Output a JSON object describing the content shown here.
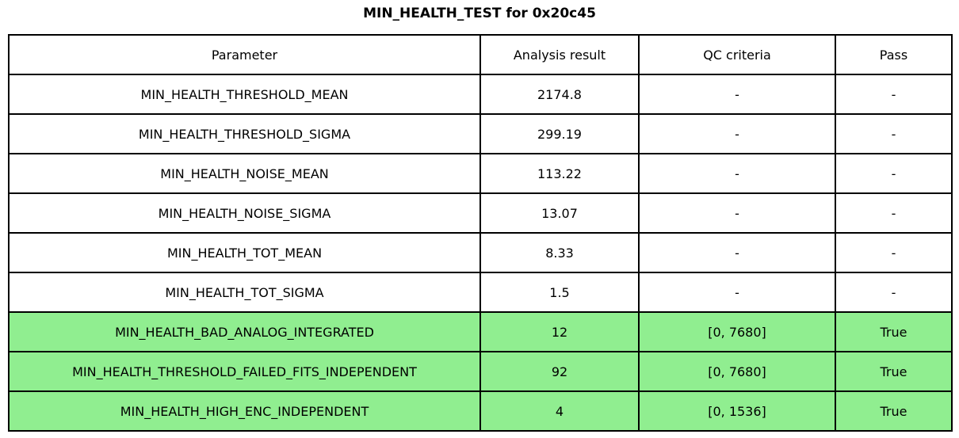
{
  "title": "MIN_HEALTH_TEST for 0x20c45",
  "colors": {
    "pass_row_green": "#90EE90",
    "border": "#000000",
    "background": "#ffffff"
  },
  "chart_data": {
    "type": "table",
    "title": "MIN_HEALTH_TEST for 0x20c45",
    "columns": [
      "Parameter",
      "Analysis result",
      "QC criteria",
      "Pass"
    ],
    "rows": [
      {
        "cells": [
          "MIN_HEALTH_THRESHOLD_MEAN",
          "2174.8",
          "-",
          "-"
        ],
        "highlight": false
      },
      {
        "cells": [
          "MIN_HEALTH_THRESHOLD_SIGMA",
          "299.19",
          "-",
          "-"
        ],
        "highlight": false
      },
      {
        "cells": [
          "MIN_HEALTH_NOISE_MEAN",
          "113.22",
          "-",
          "-"
        ],
        "highlight": false
      },
      {
        "cells": [
          "MIN_HEALTH_NOISE_SIGMA",
          "13.07",
          "-",
          "-"
        ],
        "highlight": false
      },
      {
        "cells": [
          "MIN_HEALTH_TOT_MEAN",
          "8.33",
          "-",
          "-"
        ],
        "highlight": false
      },
      {
        "cells": [
          "MIN_HEALTH_TOT_SIGMA",
          "1.5",
          "-",
          "-"
        ],
        "highlight": false
      },
      {
        "cells": [
          "MIN_HEALTH_BAD_ANALOG_INTEGRATED",
          "12",
          "[0, 7680]",
          "True"
        ],
        "highlight": true
      },
      {
        "cells": [
          "MIN_HEALTH_THRESHOLD_FAILED_FITS_INDEPENDENT",
          "92",
          "[0, 7680]",
          "True"
        ],
        "highlight": true
      },
      {
        "cells": [
          "MIN_HEALTH_HIGH_ENC_INDEPENDENT",
          "4",
          "[0, 1536]",
          "True"
        ],
        "highlight": true
      }
    ]
  }
}
